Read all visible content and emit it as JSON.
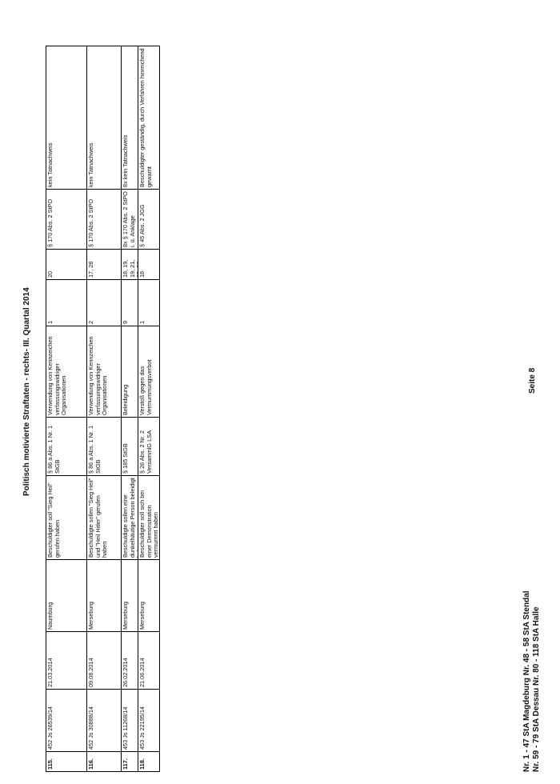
{
  "title": "Politisch motivierte Straftaten - rechts- III. Quartal 2014",
  "rows": [
    {
      "nr": "115.",
      "az": "452 Js 26539/14",
      "date": "21.03.2014",
      "place": "Naumburg",
      "desc": "Beschuldigter soll \"Sieg Heil\" gerufen haben",
      "law": "§ 86 a Abs. 1 Nr. 1 StGB",
      "offense": "Verwendung von Kennzeichen verfassungswidriger Organisationen",
      "count": "1",
      "ref": "20",
      "disposition": "§ 170 Abs. 2 StPO",
      "remark": "kein Tatnachweis"
    },
    {
      "nr": "116.",
      "az": "452 Js 30888/14",
      "date": "09.08.2014",
      "place": "Merseburg",
      "desc": "Beschuldigte sollen \"Sieg Heil\" und \"Heil Hitler\" gerufen haben",
      "law": "§ 86 a Abs. 1 Nr. 1 StGB",
      "offense": "Verwendung von Kennzeichen verfassungswidriger Organisationen",
      "count": "2",
      "ref": "17, 28",
      "disposition": "§ 170 Abs. 2 StPO",
      "remark": "kein Tatnachweis"
    },
    {
      "nr": "117.",
      "az": "453 Js 11268/14",
      "date": "26.02.2014",
      "place": "Merseburg",
      "desc": "Beschuldigte sollen eine dunkelhäutige Person beleidigt haben",
      "law": "§ 185 StGB",
      "offense": "Beleidigung",
      "count": "9",
      "ref": "18, 19, 19, 21, 22, 22, 23, 24, 25",
      "disposition": "8x § 170 Abs. 2 StPO i. ü. Anklage",
      "remark": "8x kein Tatnachweis"
    },
    {
      "nr": "118.",
      "az": "453 Js 22195/14",
      "date": "21.06.2014",
      "place": "Merseburg",
      "desc": "Beschuldigter soll sich bei einer Demonstration vermummt haben",
      "law": "§ 26 Abs. 2 Nr. 2 VersammlG LSA",
      "offense": "Verstoß gegen das Vermummungsverbot",
      "count": "1",
      "ref": "18",
      "disposition": "§ 45 Abs. 2 JGG",
      "remark": "Beschuldigter geständig, durch Verfahren hinreichend gewarnt"
    }
  ],
  "footer": {
    "line1": "Nr. 1 - 47 StA Magdeburg Nr. 48 - 58 StA Stendal",
    "line2": "Nr. 59 - 79 StA Dessau Nr. 80 - 118 StA Halle",
    "page": "Seite 8"
  }
}
